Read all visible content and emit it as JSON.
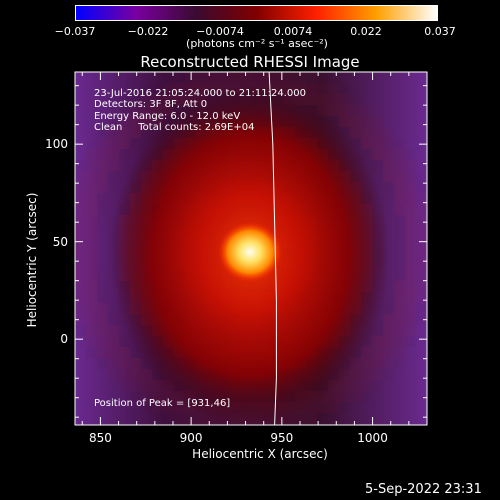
{
  "colorbar": {
    "ticks": [
      "−0.037",
      "−0.022",
      "−0.0074",
      "0.0074",
      "0.022",
      "0.037"
    ],
    "units": "(photons cm⁻² s⁻¹ asec⁻²)"
  },
  "footer": {
    "date": "5-Sep-2022 23:31"
  },
  "chart_data": {
    "type": "heatmap",
    "title": "Reconstructed RHESSI Image",
    "xlabel": "Heliocentric X (arcsec)",
    "ylabel": "Heliocentric Y (arcsec)",
    "xlim": [
      836,
      1030
    ],
    "ylim": [
      -44,
      137
    ],
    "xticks": [
      850,
      900,
      950,
      1000
    ],
    "yticks": [
      0,
      50,
      100
    ],
    "colormap": [
      "#0000ff",
      "#7a00a0",
      "#3a0a30",
      "#800000",
      "#ff2000",
      "#ffa000",
      "#ffffff"
    ],
    "clim": [
      -0.037,
      0.037
    ],
    "peak": {
      "x": 931,
      "y": 46
    },
    "limb_curve": [
      [
        943,
        137
      ],
      [
        945,
        100
      ],
      [
        946,
        60
      ],
      [
        947,
        20
      ],
      [
        947,
        -20
      ],
      [
        946,
        -44
      ]
    ],
    "annotations": {
      "time": "23-Jul-2016 21:05:24.000 to 21:11:24.000",
      "detectors": "Detectors: 3F 8F, Att 0",
      "energy": "Energy Range: 6.0 - 12.0 keV",
      "clean": "Clean     Total counts: 2.69E+04",
      "peak": "Position of Peak = [931,46]"
    }
  }
}
